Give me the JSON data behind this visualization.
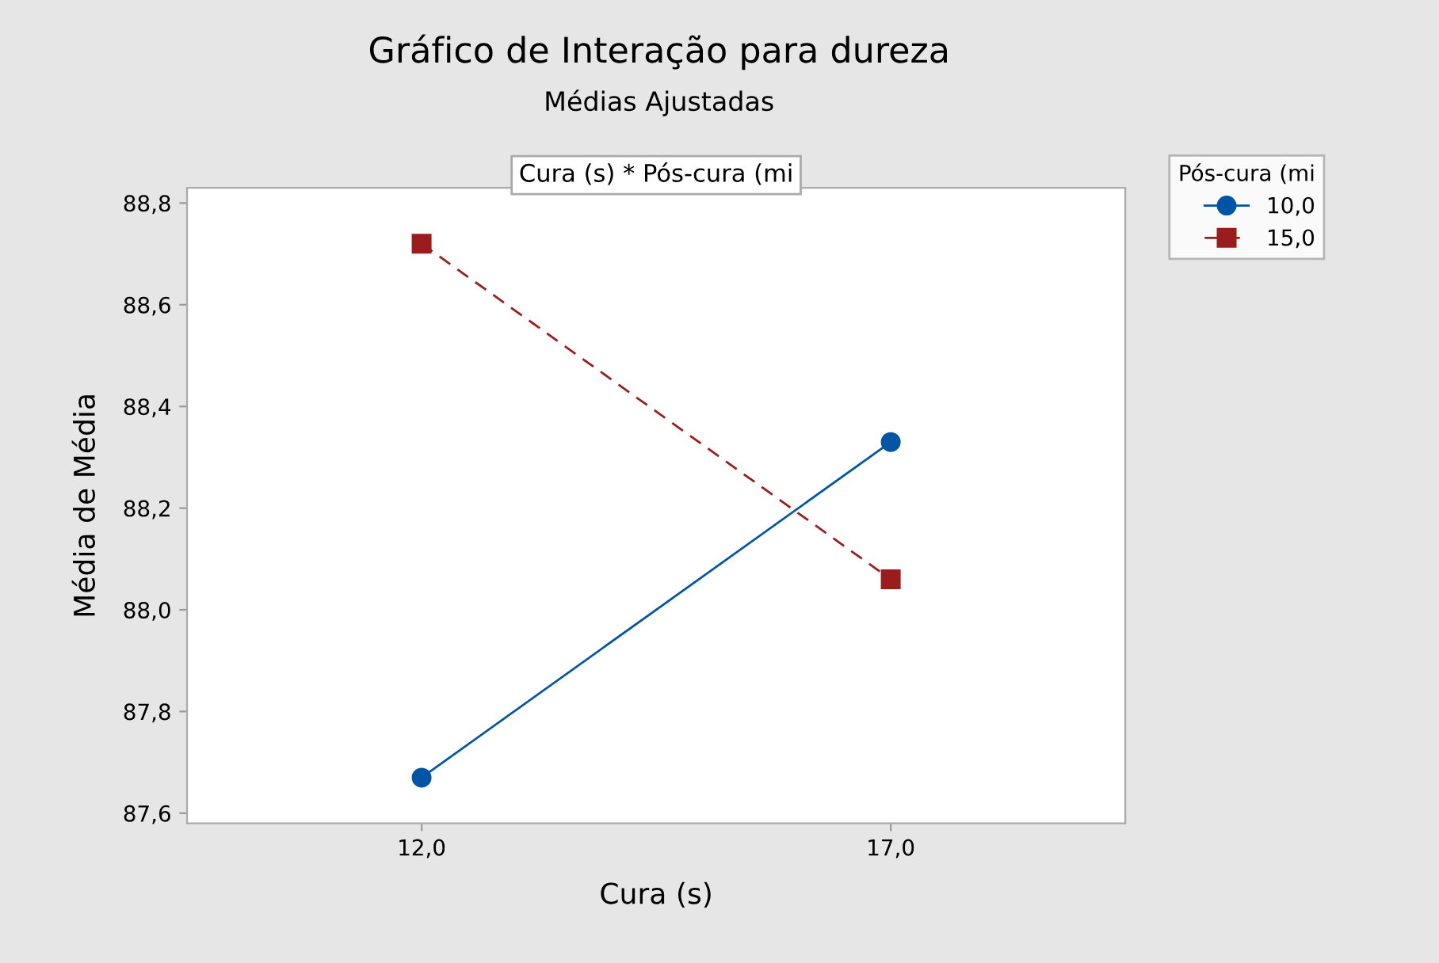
{
  "chart_data": {
    "type": "line",
    "title": "Gráfico de Interação para dureza",
    "subtitle": "Médias Ajustadas",
    "annotations": [
      "Cura (s) * Pós-cura (mi"
    ],
    "xlabel": "Cura (s)",
    "ylabel": "Média de Média",
    "legend_title": "Pós-cura (mi",
    "legend": "top right",
    "grid": false,
    "x": [
      12,
      17
    ],
    "xlim": [
      9.5,
      19.5
    ],
    "xticks": [
      {
        "value": 12,
        "label": "12,0"
      },
      {
        "value": 17,
        "label": "17,0"
      }
    ],
    "ylim": [
      87.58,
      88.83
    ],
    "yticks": [
      {
        "value": 87.6,
        "label": "87,6"
      },
      {
        "value": 87.8,
        "label": "87,8"
      },
      {
        "value": 88.0,
        "label": "88,0"
      },
      {
        "value": 88.2,
        "label": "88,2"
      },
      {
        "value": 88.4,
        "label": "88,4"
      },
      {
        "value": 88.6,
        "label": "88,6"
      },
      {
        "value": 88.8,
        "label": "88,8"
      }
    ],
    "series": [
      {
        "name": "10,0",
        "color": "#0054a6",
        "marker": "circle",
        "line_style": "solid",
        "values": [
          87.67,
          88.33
        ]
      },
      {
        "name": "15,0",
        "color": "#9b1c1c",
        "marker": "square",
        "line_style": "dashed",
        "values": [
          88.72,
          88.06
        ]
      }
    ]
  }
}
